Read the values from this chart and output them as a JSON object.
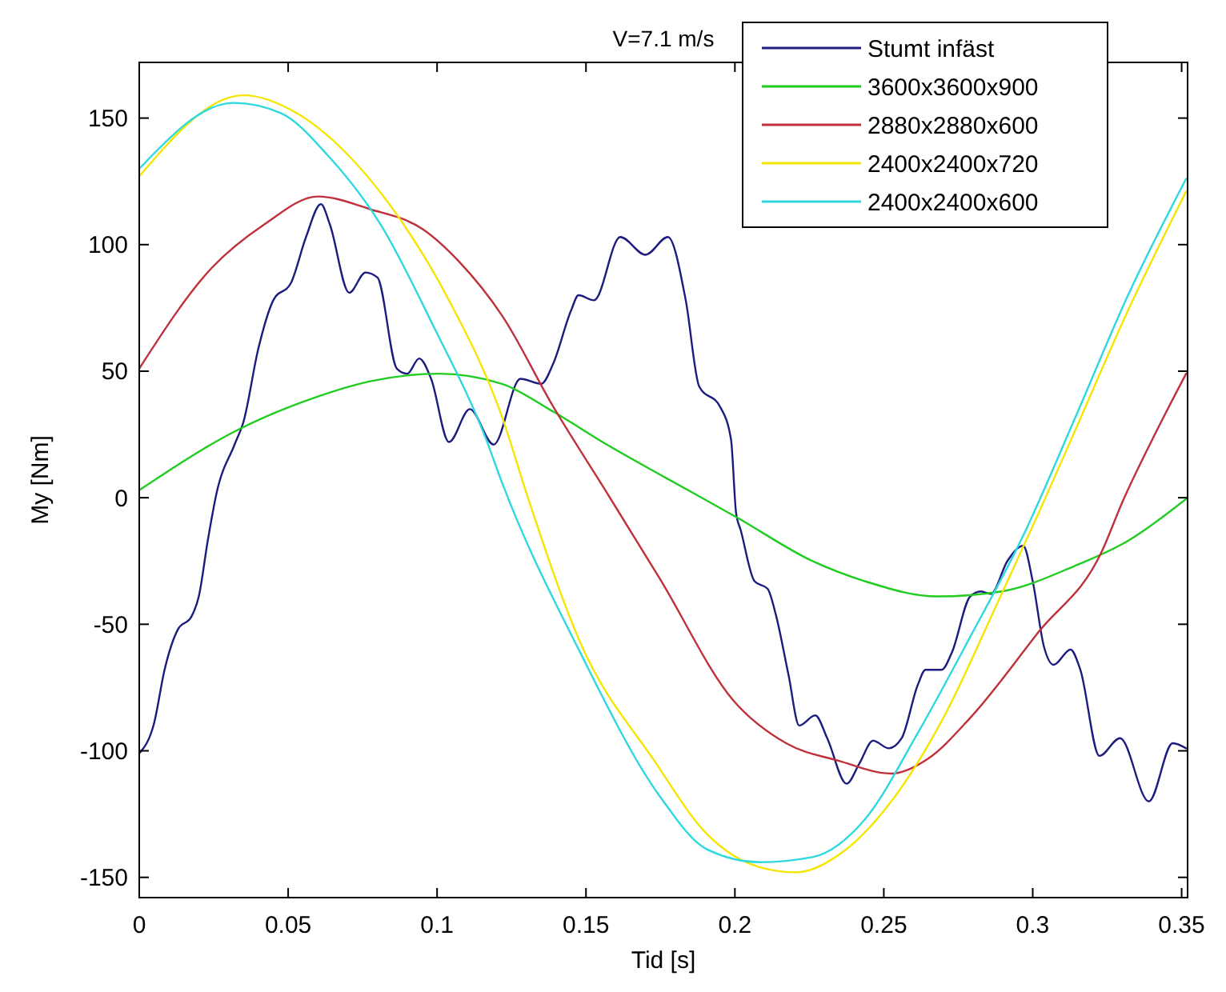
{
  "chart_data": {
    "type": "line",
    "title": "V=7.1 m/s",
    "xlabel": "Tid [s]",
    "ylabel": "My [Nm]",
    "xlim": [
      0,
      0.352
    ],
    "ylim": [
      -158,
      172
    ],
    "xticks": [
      0,
      0.05,
      0.1,
      0.15,
      0.2,
      0.25,
      0.3,
      0.35
    ],
    "yticks": [
      -150,
      -100,
      -50,
      0,
      50,
      100,
      150
    ],
    "grid": false,
    "legend": "top right",
    "marker": "none",
    "line_style": "solid",
    "series": [
      {
        "name": "Stumt infäst",
        "color": "#1c1c80",
        "x": [
          0,
          0.005,
          0.0085,
          0.013,
          0.0175,
          0.02,
          0.023,
          0.026,
          0.032,
          0.035,
          0.04,
          0.045,
          0.051,
          0.056,
          0.061,
          0.064,
          0.0705,
          0.076,
          0.08,
          0.0865,
          0.09,
          0.094,
          0.098,
          0.104,
          0.111,
          0.119,
          0.128,
          0.135,
          0.139,
          0.145,
          0.1475,
          0.1527,
          0.1615,
          0.17,
          0.1775,
          0.1835,
          0.188,
          0.195,
          0.1987,
          0.2004,
          0.202,
          0.2066,
          0.211,
          0.2137,
          0.218,
          0.2216,
          0.227,
          0.231,
          0.2375,
          0.2418,
          0.2464,
          0.2517,
          0.256,
          0.2614,
          0.264,
          0.2694,
          0.2729,
          0.279,
          0.2826,
          0.286,
          0.2915,
          0.2968,
          0.3,
          0.3038,
          0.307,
          0.3127,
          0.316,
          0.3224,
          0.3293,
          0.339,
          0.347,
          0.3515
        ],
        "values": [
          -101,
          -89,
          -68,
          -52,
          -47,
          -39,
          -17,
          2,
          21,
          30,
          59,
          78,
          85,
          103,
          116,
          108,
          81,
          89,
          87,
          51,
          49,
          55,
          47,
          22,
          35,
          21,
          47,
          45,
          53,
          74,
          80,
          78,
          103,
          96,
          103,
          78,
          44,
          36,
          23,
          -6,
          -13,
          -33,
          -36,
          -46,
          -70,
          -90,
          -86,
          -95,
          -113,
          -105,
          -96,
          -99,
          -95,
          -74,
          -68,
          -68,
          -61,
          -39,
          -37,
          -38,
          -25,
          -19,
          -33,
          -59,
          -66,
          -60,
          -68,
          -102,
          -95,
          -120,
          -97,
          -99
        ]
      },
      {
        "name": "3600x3600x900",
        "color": "#1fcc1f",
        "x": [
          0,
          0.0334,
          0.06,
          0.0775,
          0.1006,
          0.1218,
          0.139,
          0.157,
          0.1766,
          0.201,
          0.226,
          0.2437,
          0.268,
          0.2896,
          0.314,
          0.332,
          0.352
        ],
        "values": [
          3,
          27,
          40,
          46,
          49,
          45,
          34,
          21,
          8,
          -8,
          -25,
          -33,
          -39,
          -37,
          -27,
          -17,
          0
        ]
      },
      {
        "name": "2880x2880x600",
        "color": "#c0303a",
        "x": [
          0,
          0.0245,
          0.042,
          0.06,
          0.0775,
          0.0953,
          0.1076,
          0.1218,
          0.139,
          0.157,
          0.1748,
          0.1994,
          0.2172,
          0.235,
          0.2525,
          0.265,
          0.279,
          0.302,
          0.3233,
          0.33,
          0.341,
          0.3515
        ],
        "values": [
          51,
          91,
          108,
          119,
          114,
          106,
          93,
          72,
          36,
          2,
          -32,
          -80,
          -97,
          -104,
          -109,
          -103,
          -87,
          -53,
          -21,
          -2,
          25,
          49
        ]
      },
      {
        "name": "2400x2400x720",
        "color": "#f5e600",
        "x": [
          0,
          0.035,
          0.0528,
          0.0688,
          0.0864,
          0.104,
          0.1218,
          0.1305,
          0.148,
          0.173,
          0.1907,
          0.2084,
          0.2207,
          0.235,
          0.2525,
          0.27,
          0.288,
          0.302,
          0.3144,
          0.332,
          0.3515
        ],
        "values": [
          127,
          159,
          152,
          137,
          112,
          78,
          32,
          0,
          -57,
          -104,
          -133,
          -146,
          -148,
          -141,
          -120,
          -87,
          -42,
          -6,
          27,
          74,
          121
        ]
      },
      {
        "name": "2400x2400x600",
        "color": "#2ed8e0",
        "x": [
          0,
          0.0316,
          0.0475,
          0.0635,
          0.081,
          0.0987,
          0.1165,
          0.1218,
          0.148,
          0.1748,
          0.1907,
          0.2084,
          0.226,
          0.2437,
          0.2614,
          0.279,
          0.2968,
          0.3144,
          0.332,
          0.3515
        ],
        "values": [
          130,
          156,
          152,
          135,
          108,
          68,
          23,
          6,
          -61,
          -118,
          -139,
          -144,
          -142,
          -127,
          -93,
          -55,
          -15,
          32,
          80,
          126
        ]
      }
    ]
  }
}
